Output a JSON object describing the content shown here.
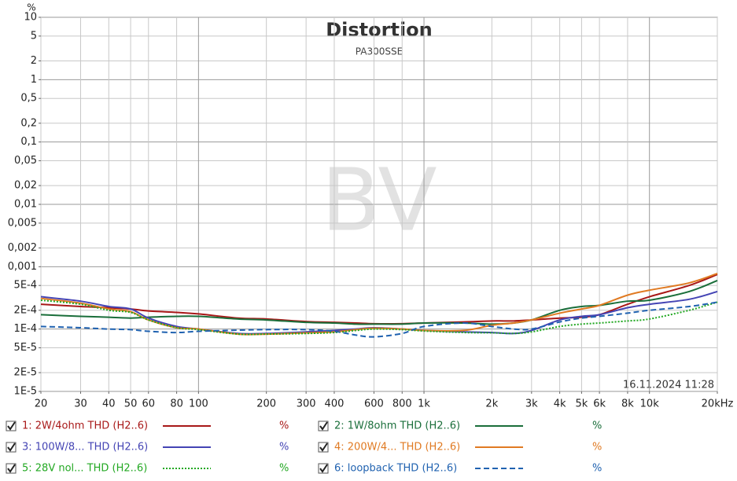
{
  "chart_data": {
    "type": "line",
    "title": "Distortion",
    "subtitle": "PA300SSE",
    "y_label": "%",
    "watermark": "BV",
    "timestamp": "16.11.2024 11:28",
    "x_log": true,
    "y_log": true,
    "grid": true,
    "xlim": [
      20,
      20000
    ],
    "ylim": [
      1e-05,
      10
    ],
    "xticks": [
      20,
      30,
      40,
      50,
      60,
      80,
      100,
      200,
      300,
      400,
      600,
      800,
      {
        "value": 1000,
        "label": "1k"
      },
      {
        "value": 2000,
        "label": "2k"
      },
      {
        "value": 3000,
        "label": "3k"
      },
      {
        "value": 4000,
        "label": "4k"
      },
      {
        "value": 5000,
        "label": "5k"
      },
      {
        "value": 6000,
        "label": "6k"
      },
      {
        "value": 8000,
        "label": "8k"
      },
      {
        "value": 10000,
        "label": "10k"
      },
      {
        "value": 20000,
        "label": "20kHz"
      }
    ],
    "yticks": [
      10,
      5,
      2,
      1,
      {
        "value": 0.5,
        "label": "0,5"
      },
      {
        "value": 0.2,
        "label": "0,2"
      },
      {
        "value": 0.1,
        "label": "0,1"
      },
      {
        "value": 0.05,
        "label": "0,05"
      },
      {
        "value": 0.02,
        "label": "0,02"
      },
      {
        "value": 0.01,
        "label": "0,01"
      },
      {
        "value": 0.005,
        "label": "0,005"
      },
      {
        "value": 0.002,
        "label": "0,002"
      },
      {
        "value": 0.001,
        "label": "0,001"
      },
      {
        "value": 0.0005,
        "label": "5E-4"
      },
      {
        "value": 0.0002,
        "label": "2E-4"
      },
      {
        "value": 0.0001,
        "label": "1E-4"
      },
      {
        "value": 5e-05,
        "label": "5E-5"
      },
      {
        "value": 2e-05,
        "label": "2E-5"
      },
      {
        "value": 1e-05,
        "label": "1E-5"
      }
    ],
    "x": [
      20,
      30,
      40,
      50,
      60,
      80,
      100,
      150,
      200,
      300,
      400,
      500,
      600,
      800,
      1000,
      1500,
      2000,
      2500,
      3000,
      4000,
      5000,
      6000,
      8000,
      10000,
      15000,
      20000
    ],
    "series": [
      {
        "name": "1: 2W/4ohm THD (H2..6)",
        "unit": "%",
        "color": "#a81818",
        "dash": "solid",
        "values": [
          0.00025,
          0.00023,
          0.00022,
          0.00021,
          0.000195,
          0.000185,
          0.000175,
          0.00015,
          0.000145,
          0.000132,
          0.000128,
          0.000125,
          0.000122,
          0.000122,
          0.000125,
          0.00013,
          0.000135,
          0.000135,
          0.00014,
          0.00015,
          0.000155,
          0.00017,
          0.00025,
          0.00033,
          0.0005,
          0.00075
        ]
      },
      {
        "name": "2: 1W/8ohm THD (H2..6)",
        "unit": "%",
        "color": "#1a6e3a",
        "dash": "solid",
        "values": [
          0.00017,
          0.00016,
          0.000155,
          0.00015,
          0.000155,
          0.00016,
          0.00016,
          0.000145,
          0.00014,
          0.000128,
          0.000125,
          0.00012,
          0.00012,
          0.00012,
          0.000125,
          0.000125,
          0.00012,
          0.000125,
          0.00014,
          0.0002,
          0.00023,
          0.00024,
          0.00028,
          0.00029,
          0.0004,
          0.0006
        ]
      },
      {
        "name": "3: 100W/8... THD (H2..6)",
        "unit": "%",
        "color": "#4444b4",
        "dash": "solid",
        "values": [
          0.00033,
          0.00028,
          0.00023,
          0.00021,
          0.00015,
          0.00011,
          0.0001,
          8.5e-05,
          8.5e-05,
          9e-05,
          9.5e-05,
          0.0001,
          0.000105,
          0.0001,
          9.5e-05,
          9e-05,
          8.8e-05,
          8.5e-05,
          9.5e-05,
          0.00014,
          0.00016,
          0.00017,
          0.00022,
          0.00025,
          0.0003,
          0.0004
        ]
      },
      {
        "name": "4: 200W/4... THD (H2..6)",
        "unit": "%",
        "color": "#e07a22",
        "dash": "solid",
        "values": [
          0.00031,
          0.00026,
          0.00021,
          0.00019,
          0.00014,
          0.000105,
          0.0001,
          8.3e-05,
          8.3e-05,
          8.7e-05,
          9e-05,
          9.8e-05,
          0.000103,
          0.0001,
          9.5e-05,
          9.5e-05,
          0.000115,
          0.000125,
          0.00014,
          0.00018,
          0.00021,
          0.00024,
          0.00035,
          0.00042,
          0.00055,
          0.00078
        ]
      },
      {
        "name": "5: 28V nol... THD (H2..6)",
        "unit": "%",
        "color": "#22a822",
        "dash": "dotted",
        "values": [
          0.00029,
          0.00025,
          0.0002,
          0.000185,
          0.00014,
          0.000105,
          9.8e-05,
          8.3e-05,
          8.3e-05,
          8.5e-05,
          8.8e-05,
          9.5e-05,
          0.0001,
          9.8e-05,
          9.3e-05,
          8.8e-05,
          8.7e-05,
          8.5e-05,
          9e-05,
          0.00011,
          0.00012,
          0.000125,
          0.000135,
          0.000145,
          0.0002,
          0.00027
        ]
      },
      {
        "name": "6: loopback THD (H2..6)",
        "unit": "%",
        "color": "#2062b0",
        "dash": "dashed",
        "values": [
          0.00011,
          0.000105,
          0.0001,
          9.8e-05,
          9.2e-05,
          8.8e-05,
          9.2e-05,
          9.6e-05,
          9.8e-05,
          9.8e-05,
          9.2e-05,
          8e-05,
          7.5e-05,
          8.5e-05,
          0.00011,
          0.000125,
          0.00011,
          0.0001,
          0.0001,
          0.00013,
          0.00015,
          0.00016,
          0.00018,
          0.0002,
          0.00023,
          0.00027
        ]
      }
    ]
  }
}
